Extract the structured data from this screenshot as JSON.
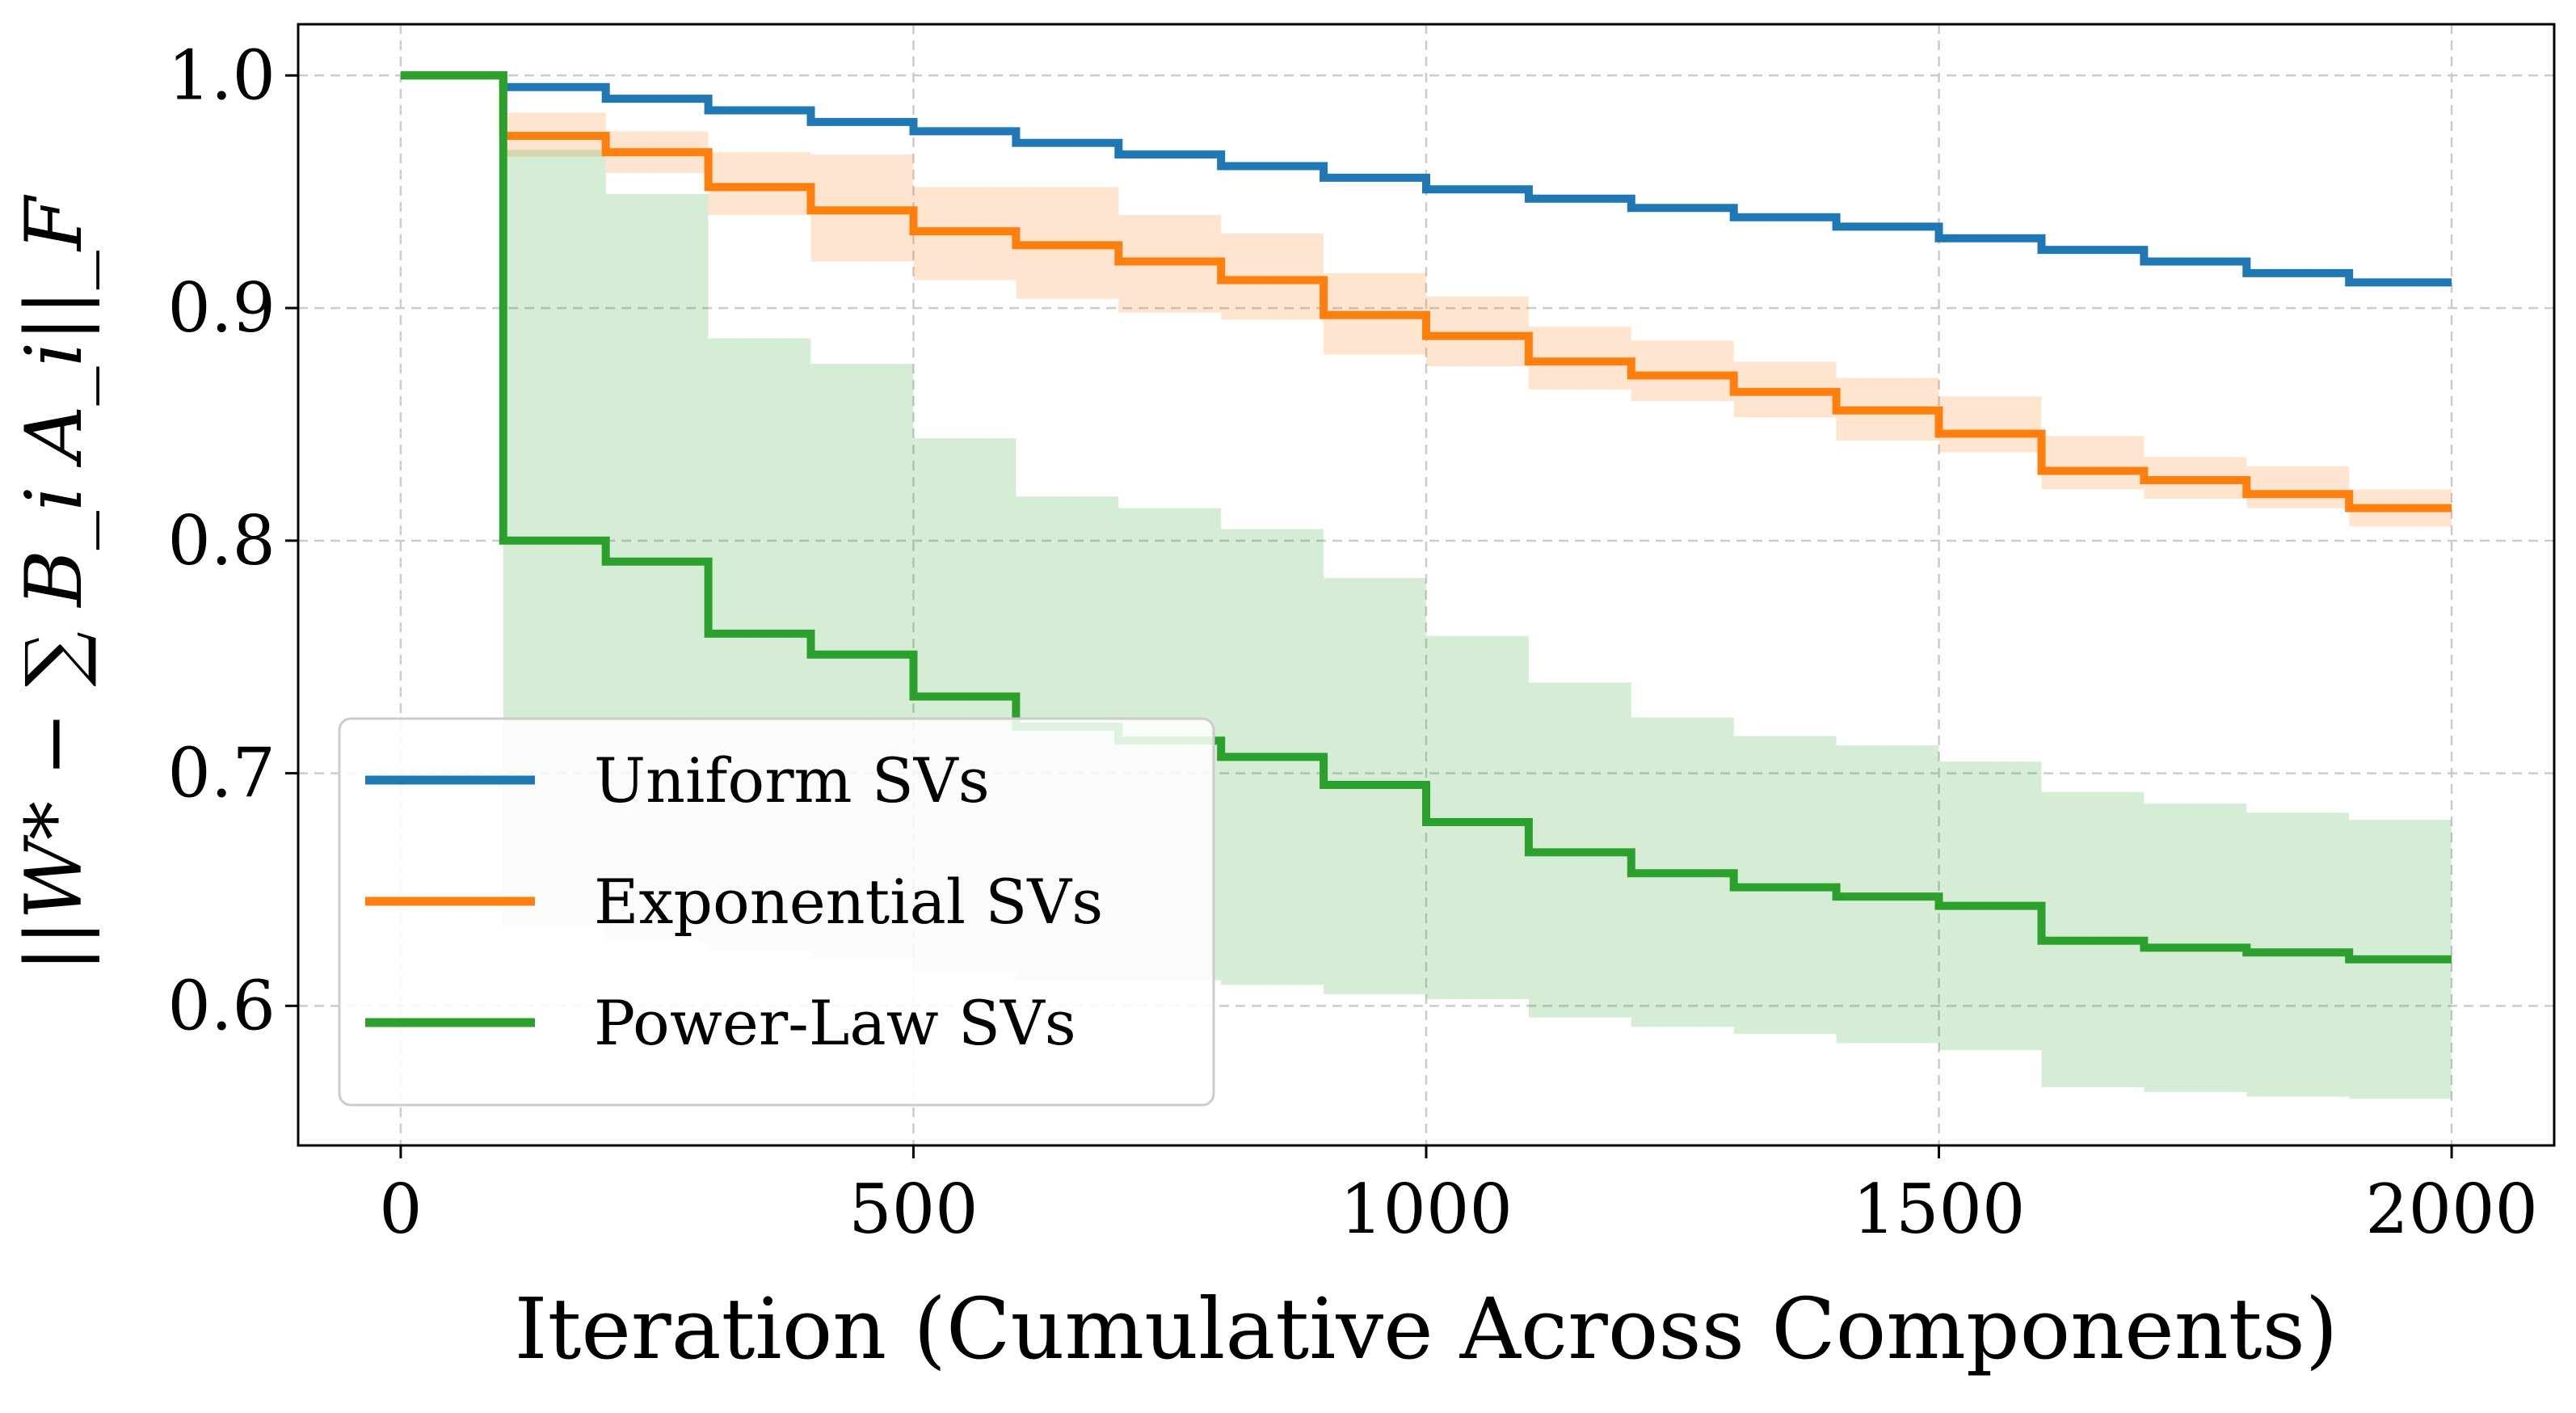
{
  "chart_data": {
    "type": "line",
    "xlabel": "Iteration (Cumulative Across Components)",
    "ylabel": "||W* − ∑ B_i A_i||_F",
    "xlim": [
      -100,
      2100
    ],
    "ylim": [
      0.54,
      1.022
    ],
    "xticks": [
      0,
      500,
      1000,
      1500,
      2000
    ],
    "xtick_labels": [
      "0",
      "500",
      "1000",
      "1500",
      "2000"
    ],
    "yticks": [
      0.6,
      0.7,
      0.8,
      0.9,
      1.0
    ],
    "ytick_labels": [
      "0.6",
      "0.7",
      "0.8",
      "0.9",
      "1.0"
    ],
    "grid": true,
    "legend_position": "bottom-left",
    "x": [
      0,
      100,
      200,
      300,
      400,
      500,
      600,
      700,
      800,
      900,
      1000,
      1100,
      1200,
      1300,
      1400,
      1500,
      1600,
      1700,
      1800,
      1900,
      2000
    ],
    "series": [
      {
        "name": "Uniform SVs",
        "color": "#1f77b4",
        "values": [
          1.0,
          0.995,
          0.99,
          0.985,
          0.98,
          0.976,
          0.971,
          0.966,
          0.961,
          0.956,
          0.951,
          0.947,
          0.943,
          0.939,
          0.935,
          0.93,
          0.925,
          0.92,
          0.915,
          0.911,
          0.911
        ],
        "lower": null,
        "upper": null
      },
      {
        "name": "Exponential SVs",
        "color": "#ff7f0e",
        "values": [
          1.0,
          0.974,
          0.967,
          0.952,
          0.942,
          0.933,
          0.927,
          0.92,
          0.912,
          0.897,
          0.888,
          0.877,
          0.871,
          0.864,
          0.856,
          0.846,
          0.83,
          0.826,
          0.82,
          0.814,
          0.814
        ],
        "lower": [
          1.0,
          0.965,
          0.958,
          0.94,
          0.92,
          0.912,
          0.904,
          0.898,
          0.895,
          0.88,
          0.875,
          0.865,
          0.86,
          0.853,
          0.843,
          0.838,
          0.822,
          0.818,
          0.814,
          0.806,
          0.806
        ],
        "upper": [
          1.0,
          0.984,
          0.976,
          0.967,
          0.966,
          0.952,
          0.952,
          0.94,
          0.932,
          0.915,
          0.905,
          0.892,
          0.886,
          0.877,
          0.87,
          0.862,
          0.845,
          0.836,
          0.832,
          0.822,
          0.822
        ]
      },
      {
        "name": "Power-Law SVs",
        "color": "#2ca02c",
        "values": [
          1.0,
          0.8,
          0.791,
          0.76,
          0.751,
          0.733,
          0.72,
          0.714,
          0.707,
          0.695,
          0.679,
          0.666,
          0.657,
          0.651,
          0.647,
          0.643,
          0.628,
          0.625,
          0.623,
          0.62,
          0.62
        ],
        "lower": [
          1.0,
          0.634,
          0.628,
          0.624,
          0.62,
          0.615,
          0.611,
          0.611,
          0.609,
          0.605,
          0.603,
          0.595,
          0.591,
          0.588,
          0.584,
          0.581,
          0.565,
          0.563,
          0.561,
          0.56,
          0.56
        ],
        "upper": [
          1.0,
          0.968,
          0.949,
          0.887,
          0.876,
          0.844,
          0.819,
          0.814,
          0.805,
          0.784,
          0.759,
          0.739,
          0.724,
          0.716,
          0.712,
          0.705,
          0.692,
          0.687,
          0.683,
          0.68,
          0.68
        ]
      }
    ]
  }
}
